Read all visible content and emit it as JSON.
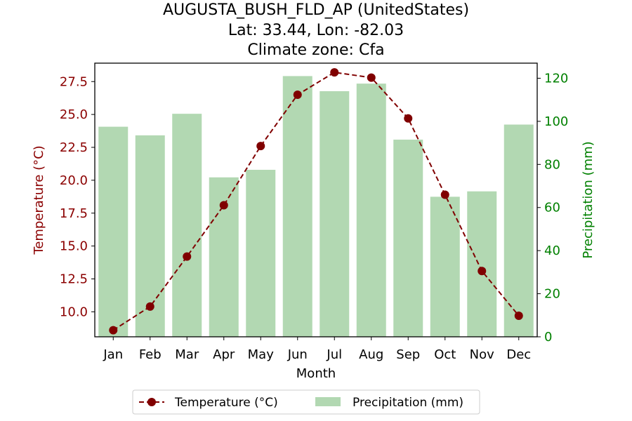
{
  "chart_data": {
    "type": "bar+line",
    "title_lines": [
      "AUGUSTA_BUSH_FLD_AP (UnitedStates)",
      "Lat: 33.44, Lon: -82.03",
      "Climate zone: Cfa"
    ],
    "xlabel": "Month",
    "ylabel_left": "Temperature (°C)",
    "ylabel_right": "Precipitation (mm)",
    "categories": [
      "Jan",
      "Feb",
      "Mar",
      "Apr",
      "May",
      "Jun",
      "Jul",
      "Aug",
      "Sep",
      "Oct",
      "Nov",
      "Dec"
    ],
    "temperature": {
      "name": "Temperature (°C)",
      "values": [
        8.6,
        10.4,
        14.2,
        18.1,
        22.6,
        26.5,
        28.2,
        27.8,
        24.7,
        18.9,
        13.1,
        9.7
      ],
      "color": "#800000"
    },
    "precipitation": {
      "name": "Precipitation (mm)",
      "values": [
        97.5,
        93.5,
        103.5,
        74,
        77.5,
        121,
        114,
        117.5,
        91.5,
        65,
        67.5,
        98.5
      ],
      "color": "#b2d8b2"
    },
    "ylim_left": [
      8.1,
      28.9
    ],
    "ylim_right": [
      0,
      127
    ],
    "left_ticks": [
      "10.0",
      "12.5",
      "15.0",
      "17.5",
      "20.0",
      "22.5",
      "25.0",
      "27.5"
    ],
    "right_ticks": [
      "0",
      "20",
      "40",
      "60",
      "80",
      "100",
      "120"
    ],
    "legend_position": "bottom-center",
    "grid": false
  }
}
